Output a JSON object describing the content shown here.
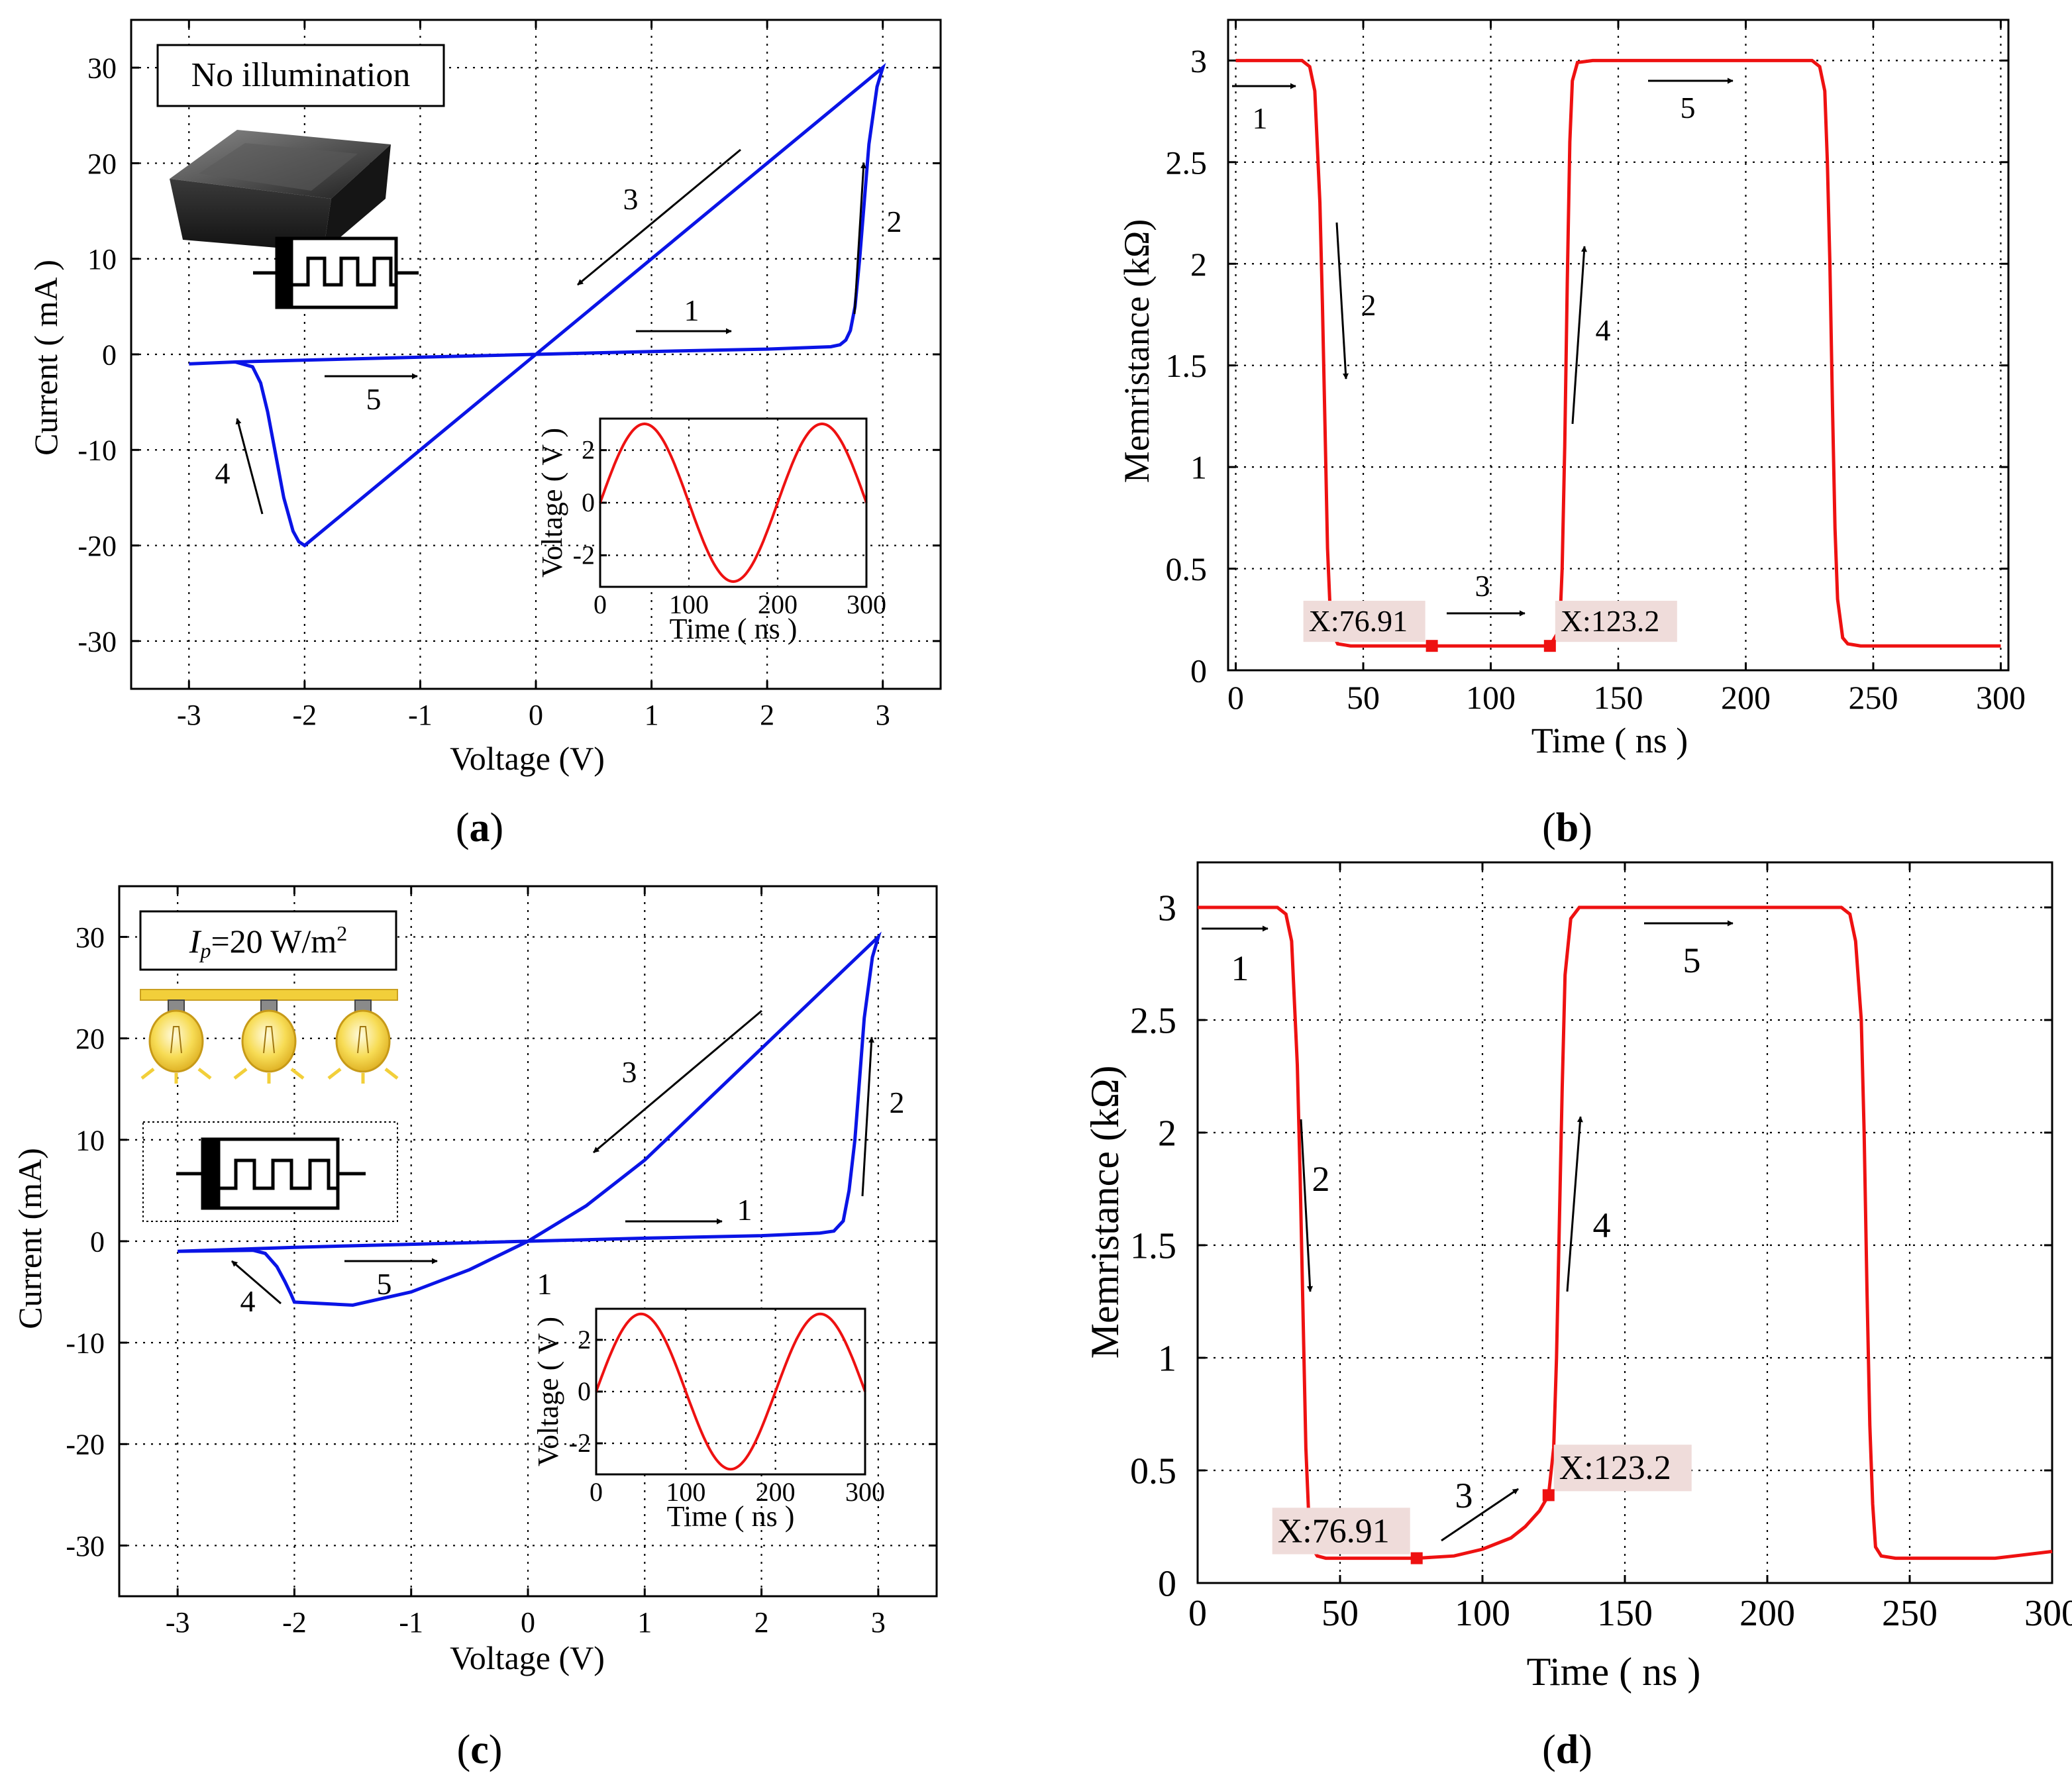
{
  "panels": [
    {
      "id": "a",
      "caption": "a",
      "xlabel": "Voltage (V)",
      "ylabel": "Current ( mA )",
      "annotation_box": "No illumination",
      "arrow_labels": [
        "1",
        "2",
        "3",
        "4",
        "5"
      ]
    },
    {
      "id": "b",
      "caption": "b",
      "xlabel": "Time ( ns )",
      "ylabel": "Memristance (kΩ)",
      "datatips": [
        "X:76.91",
        "X:123.2"
      ],
      "arrow_labels": [
        "1",
        "2",
        "3",
        "4",
        "5"
      ]
    },
    {
      "id": "c",
      "caption": "c",
      "xlabel": "Voltage (V)",
      "ylabel": "Current (mA)",
      "annotation_box": {
        "symbol": "I",
        "subscript": "p",
        "text": "=20 W/m",
        "superscript": "2"
      },
      "arrow_labels": [
        "1",
        "2",
        "3",
        "4",
        "5"
      ],
      "stray_label": "1"
    },
    {
      "id": "d",
      "caption": "d",
      "xlabel": "Time ( ns )",
      "ylabel": "Memristance (kΩ)",
      "datatips": [
        "X:76.91",
        "X:123.2"
      ],
      "arrow_labels": [
        "1",
        "2",
        "3",
        "4",
        "5"
      ]
    }
  ],
  "inset": {
    "xlabel": "Time ( ns )",
    "ylabel": "Voltage ( V )"
  },
  "colors": {
    "iv_curve": "#0a14e6",
    "memristance_curve": "#ee1111",
    "inset_curve": "#ee1111",
    "datatip_bg": "#efdcda",
    "lamp": "#f2cf3a"
  },
  "chart_data": [
    {
      "panel": "a",
      "type": "line",
      "title": "",
      "xlabel": "Voltage (V)",
      "ylabel": "Current ( mA )",
      "xlim": [
        -3.5,
        3.5
      ],
      "ylim": [
        -35,
        35
      ],
      "xticks": [
        -3,
        -2,
        -1,
        0,
        1,
        2,
        3
      ],
      "yticks": [
        -30,
        -20,
        -10,
        0,
        10,
        20,
        30
      ],
      "grid": true,
      "series": [
        {
          "x": [
            -3,
            -2.6,
            -2.45,
            -2.38,
            -2.32,
            -2.25,
            -2.18,
            -2.1,
            -2.05,
            -2.0,
            -1.0,
            0,
            1.0,
            2.0,
            3.0,
            2.95,
            2.88,
            2.84,
            2.8,
            2.76,
            2.72,
            2.68,
            2.63,
            2.55,
            2.0,
            1.0,
            0,
            -1.0,
            -2.0,
            -2.6,
            -3.0
          ],
          "y": [
            -1.0,
            -0.8,
            -1.3,
            -3.0,
            -6.0,
            -10.5,
            -15.0,
            -18.5,
            -19.6,
            -20.0,
            -10.0,
            0,
            10.0,
            20.0,
            30.0,
            28.0,
            22.0,
            16.0,
            10.0,
            5.0,
            2.5,
            1.5,
            1.0,
            0.8,
            0.55,
            0.3,
            0,
            -0.3,
            -0.6,
            -0.8,
            -1.0
          ]
        }
      ],
      "inset_series": {
        "x_ns": [
          0,
          50,
          100,
          150,
          200,
          250,
          300
        ],
        "v": [
          0,
          3,
          0,
          -3,
          0,
          3,
          0
        ],
        "xlim": [
          0,
          300
        ],
        "ylim": [
          -3.2,
          3.2
        ],
        "xticks": [
          0,
          100,
          200,
          300
        ],
        "yticks": [
          -2,
          0,
          2
        ]
      }
    },
    {
      "panel": "b",
      "type": "line",
      "title": "",
      "xlabel": "Time ( ns )",
      "ylabel": "Memristance (kΩ)",
      "xlim": [
        -3,
        303
      ],
      "ylim": [
        0,
        3.2
      ],
      "xticks": [
        0,
        50,
        100,
        150,
        200,
        250,
        300
      ],
      "yticks": [
        0,
        0.5,
        1,
        1.5,
        2,
        2.5,
        3
      ],
      "grid": true,
      "series": [
        {
          "x": [
            0,
            26,
            29,
            31,
            33,
            34,
            35,
            36,
            37,
            38,
            40,
            45,
            76.91,
            123.2,
            127,
            128,
            129,
            130,
            131,
            132,
            134,
            140,
            226,
            229,
            231,
            232,
            233,
            234,
            235,
            236,
            238,
            240,
            245,
            300
          ],
          "y": [
            3.0,
            3.0,
            2.97,
            2.85,
            2.3,
            1.8,
            1.2,
            0.6,
            0.3,
            0.18,
            0.13,
            0.12,
            0.12,
            0.12,
            0.2,
            0.5,
            1.1,
            1.9,
            2.6,
            2.9,
            2.99,
            3.0,
            3.0,
            2.97,
            2.85,
            2.5,
            2.0,
            1.3,
            0.7,
            0.35,
            0.16,
            0.13,
            0.12,
            0.12
          ]
        }
      ],
      "markers": [
        {
          "x": 76.91,
          "y": 0.12,
          "label": "X:76.91"
        },
        {
          "x": 123.2,
          "y": 0.12,
          "label": "X:123.2"
        }
      ]
    },
    {
      "panel": "c",
      "type": "line",
      "title": "",
      "xlabel": "Voltage (V)",
      "ylabel": "Current (mA)",
      "xlim": [
        -3.5,
        3.5
      ],
      "ylim": [
        -35,
        35
      ],
      "xticks": [
        -3,
        -2,
        -1,
        0,
        1,
        2,
        3
      ],
      "yticks": [
        -30,
        -20,
        -10,
        0,
        10,
        20,
        30
      ],
      "grid": true,
      "series": [
        {
          "x": [
            -3,
            -2.35,
            -2.25,
            -2.15,
            -2.08,
            -2.03,
            -2.0,
            -1.5,
            -1.0,
            -0.5,
            0,
            0.5,
            1.0,
            1.5,
            2.0,
            2.5,
            3.0,
            2.95,
            2.88,
            2.84,
            2.8,
            2.75,
            2.7,
            2.62,
            2.5,
            2.0,
            1.0,
            0,
            -1.0,
            -2.0,
            -3.0
          ],
          "y": [
            -1.0,
            -0.9,
            -1.2,
            -2.5,
            -4.0,
            -5.2,
            -6.0,
            -6.3,
            -5.0,
            -2.8,
            0,
            3.5,
            8.0,
            13.5,
            19.0,
            24.5,
            30.0,
            28.0,
            22.0,
            16.0,
            10.0,
            5.0,
            2.0,
            1.0,
            0.8,
            0.55,
            0.3,
            0,
            -0.3,
            -0.6,
            -1.0
          ]
        }
      ],
      "inset_series": {
        "x_ns": [
          0,
          50,
          100,
          150,
          200,
          250,
          300
        ],
        "v": [
          0,
          3,
          0,
          -3,
          0,
          3,
          0
        ],
        "xlim": [
          0,
          300
        ],
        "ylim": [
          -3.2,
          3.2
        ],
        "xticks": [
          0,
          100,
          200,
          300
        ],
        "yticks": [
          -2,
          0,
          2
        ]
      }
    },
    {
      "panel": "d",
      "type": "line",
      "title": "",
      "xlabel": "Time ( ns )",
      "ylabel": "Memristance (kΩ)",
      "xlim": [
        0,
        300
      ],
      "ylim": [
        0,
        3.2
      ],
      "xticks": [
        0,
        50,
        100,
        150,
        200,
        250,
        300
      ],
      "yticks": [
        0,
        0.5,
        1,
        1.5,
        2,
        2.5,
        3
      ],
      "grid": true,
      "series": [
        {
          "x": [
            0,
            28,
            31,
            33,
            35,
            36,
            37,
            38,
            39,
            40,
            42,
            45,
            76.91,
            90,
            100,
            110,
            115,
            120,
            123.2,
            125,
            126,
            127,
            128,
            129,
            131,
            134,
            140,
            226,
            229,
            231,
            233,
            234,
            235,
            236,
            237,
            238,
            240,
            245,
            280,
            300
          ],
          "y": [
            3.0,
            3.0,
            2.97,
            2.85,
            2.3,
            1.8,
            1.2,
            0.6,
            0.3,
            0.16,
            0.12,
            0.11,
            0.11,
            0.12,
            0.15,
            0.2,
            0.25,
            0.32,
            0.39,
            0.6,
            1.0,
            1.6,
            2.2,
            2.7,
            2.95,
            3.0,
            3.0,
            3.0,
            2.97,
            2.85,
            2.5,
            2.0,
            1.3,
            0.7,
            0.35,
            0.16,
            0.12,
            0.11,
            0.11,
            0.14
          ]
        }
      ],
      "markers": [
        {
          "x": 76.91,
          "y": 0.11,
          "label": "X:76.91"
        },
        {
          "x": 123.2,
          "y": 0.39,
          "label": "X:123.2"
        }
      ]
    }
  ]
}
